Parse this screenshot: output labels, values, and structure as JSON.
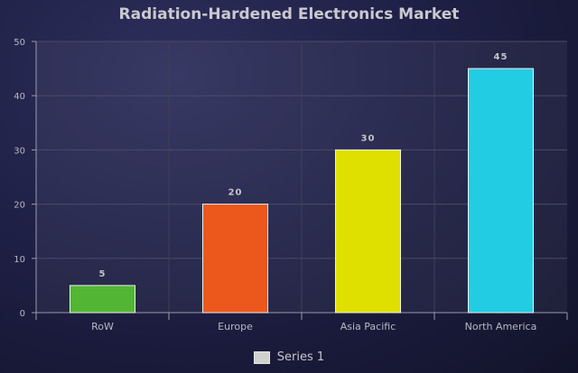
{
  "chart_data": {
    "type": "bar",
    "title": "Radiation-Hardened Electronics Market",
    "categories": [
      "RoW",
      "Europe",
      "Asia Pacific",
      "North America"
    ],
    "series": [
      {
        "name": "Series 1",
        "values": [
          5,
          20,
          30,
          45
        ],
        "colors": [
          "#52b634",
          "#ec571c",
          "#dfe000",
          "#22cde4"
        ]
      }
    ],
    "ylim": [
      0,
      50
    ],
    "yticks": [
      0,
      10,
      20,
      30,
      40,
      50
    ],
    "grid": true,
    "legend_position": "bottom"
  }
}
